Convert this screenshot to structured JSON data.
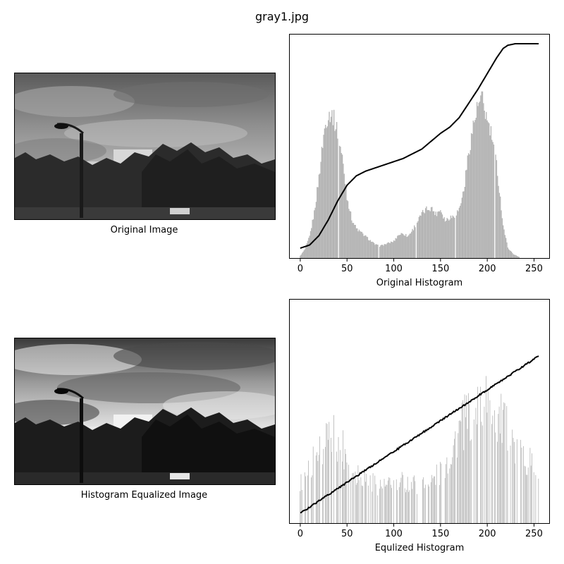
{
  "figure": {
    "title": "gray1.jpg"
  },
  "images": {
    "original_caption": "Original Image",
    "equalized_caption": "Histogram Equalized Image"
  },
  "chart_data": [
    {
      "type": "bar",
      "name": "original-histogram",
      "xlabel": "Original Histogram",
      "ylabel": "",
      "xlim": [
        -12,
        267
      ],
      "xticks": [
        0,
        50,
        100,
        150,
        200,
        250
      ],
      "bar_color": "#b3b3b3",
      "curve_color": "#000000",
      "hist_anchors": [
        [
          0,
          0.01
        ],
        [
          5,
          0.05
        ],
        [
          10,
          0.13
        ],
        [
          15,
          0.28
        ],
        [
          20,
          0.5
        ],
        [
          25,
          0.76
        ],
        [
          28,
          0.86
        ],
        [
          32,
          0.9
        ],
        [
          35,
          0.88
        ],
        [
          40,
          0.78
        ],
        [
          45,
          0.62
        ],
        [
          50,
          0.38
        ],
        [
          55,
          0.24
        ],
        [
          60,
          0.18
        ],
        [
          70,
          0.13
        ],
        [
          80,
          0.08
        ],
        [
          85,
          0.07
        ],
        [
          90,
          0.08
        ],
        [
          100,
          0.1
        ],
        [
          105,
          0.14
        ],
        [
          110,
          0.15
        ],
        [
          115,
          0.13
        ],
        [
          120,
          0.17
        ],
        [
          125,
          0.22
        ],
        [
          130,
          0.27
        ],
        [
          135,
          0.3
        ],
        [
          140,
          0.31
        ],
        [
          145,
          0.27
        ],
        [
          150,
          0.3
        ],
        [
          155,
          0.23
        ],
        [
          160,
          0.25
        ],
        [
          165,
          0.26
        ],
        [
          170,
          0.3
        ],
        [
          175,
          0.42
        ],
        [
          180,
          0.65
        ],
        [
          185,
          0.82
        ],
        [
          190,
          0.94
        ],
        [
          193,
          0.97
        ],
        [
          195,
          0.98
        ],
        [
          200,
          0.85
        ],
        [
          205,
          0.75
        ],
        [
          210,
          0.58
        ],
        [
          213,
          0.42
        ],
        [
          217,
          0.2
        ],
        [
          222,
          0.06
        ],
        [
          228,
          0.02
        ],
        [
          235,
          0.0
        ],
        [
          255,
          0.0
        ]
      ],
      "gap_bins": [
        41,
        84,
        124,
        166,
        208
      ],
      "cdf_anchors": [
        [
          0,
          0.0
        ],
        [
          10,
          0.02
        ],
        [
          20,
          0.08
        ],
        [
          30,
          0.18
        ],
        [
          40,
          0.3
        ],
        [
          50,
          0.4
        ],
        [
          60,
          0.46
        ],
        [
          70,
          0.49
        ],
        [
          80,
          0.51
        ],
        [
          90,
          0.53
        ],
        [
          100,
          0.55
        ],
        [
          110,
          0.57
        ],
        [
          120,
          0.6
        ],
        [
          130,
          0.63
        ],
        [
          140,
          0.68
        ],
        [
          150,
          0.73
        ],
        [
          160,
          0.77
        ],
        [
          170,
          0.83
        ],
        [
          180,
          0.92
        ],
        [
          190,
          1.01
        ],
        [
          200,
          1.11
        ],
        [
          210,
          1.21
        ],
        [
          217,
          1.27
        ],
        [
          222,
          1.29
        ],
        [
          230,
          1.3
        ],
        [
          255,
          1.3
        ]
      ]
    },
    {
      "type": "bar",
      "name": "equalized-histogram",
      "xlabel": "Equlized Histogram",
      "ylabel": "",
      "xlim": [
        -12,
        267
      ],
      "xticks": [
        0,
        50,
        100,
        150,
        200,
        250
      ],
      "bar_color": "#b3b3b3",
      "curve_color": "#000000",
      "hist_anchors": [
        [
          0,
          0.22
        ],
        [
          5,
          0.28
        ],
        [
          10,
          0.33
        ],
        [
          15,
          0.38
        ],
        [
          20,
          0.43
        ],
        [
          25,
          0.47
        ],
        [
          30,
          0.5
        ],
        [
          35,
          0.52
        ],
        [
          40,
          0.5
        ],
        [
          45,
          0.46
        ],
        [
          50,
          0.4
        ],
        [
          55,
          0.34
        ],
        [
          60,
          0.31
        ],
        [
          70,
          0.26
        ],
        [
          80,
          0.23
        ],
        [
          90,
          0.21
        ],
        [
          100,
          0.22
        ],
        [
          110,
          0.24
        ],
        [
          120,
          0.23
        ],
        [
          130,
          0.22
        ],
        [
          140,
          0.24
        ],
        [
          150,
          0.3
        ],
        [
          155,
          0.35
        ],
        [
          160,
          0.4
        ],
        [
          165,
          0.47
        ],
        [
          170,
          0.55
        ],
        [
          180,
          0.62
        ],
        [
          190,
          0.7
        ],
        [
          200,
          0.72
        ],
        [
          210,
          0.65
        ],
        [
          220,
          0.55
        ],
        [
          230,
          0.45
        ],
        [
          240,
          0.4
        ],
        [
          250,
          0.32
        ],
        [
          255,
          0.32
        ]
      ],
      "gap_bins": [
        64,
        124,
        152
      ],
      "cdf_anchors": [
        [
          0,
          0.0
        ],
        [
          255,
          1.0
        ]
      ]
    }
  ]
}
